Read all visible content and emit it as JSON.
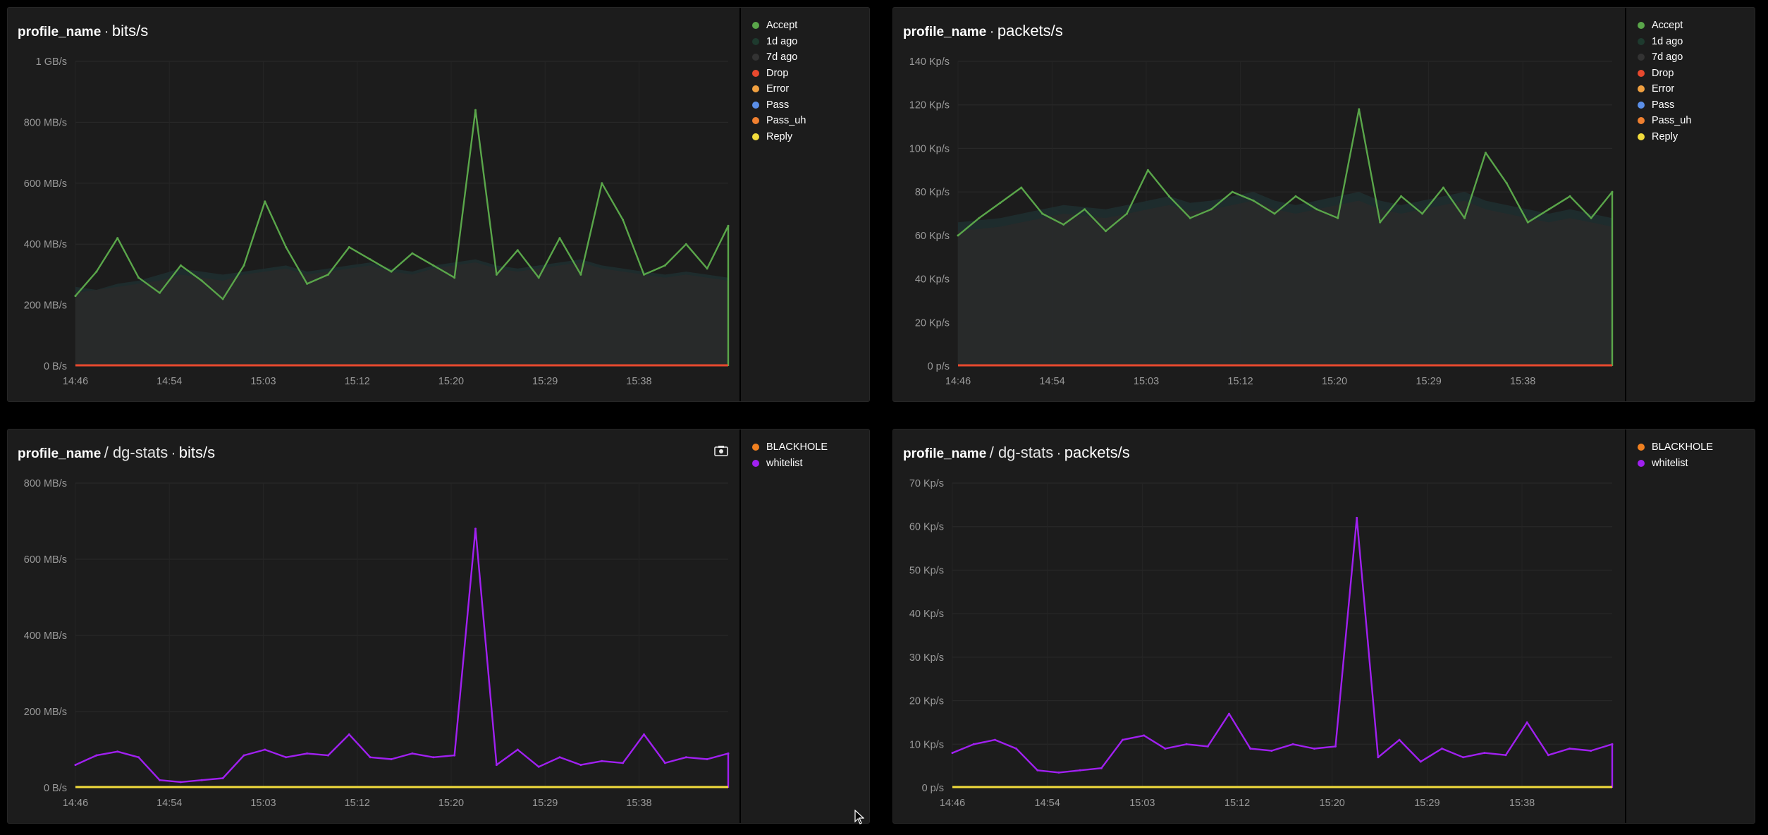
{
  "colors": {
    "accept": "#5aa64a",
    "ago1d": "#1e3a2e",
    "ago7d": "#333333",
    "drop": "#e8492e",
    "error": "#f0a040",
    "pass": "#5b8fe8",
    "pass_uh": "#f08030",
    "reply": "#f2dc3c",
    "blackhole": "#f08020",
    "whitelist": "#a020f0"
  },
  "panels": [
    {
      "title": {
        "profile": "profile_name",
        "sep": "·",
        "path": "",
        "unit": "bits/s"
      },
      "legend": [
        {
          "label": "Accept",
          "color": "#5aa64a"
        },
        {
          "label": "1d ago",
          "color": "#1e3a2e"
        },
        {
          "label": "7d ago",
          "color": "#333333"
        },
        {
          "label": "Drop",
          "color": "#e8492e"
        },
        {
          "label": "Error",
          "color": "#f0a040"
        },
        {
          "label": "Pass",
          "color": "#5b8fe8"
        },
        {
          "label": "Pass_uh",
          "color": "#f08030"
        },
        {
          "label": "Reply",
          "color": "#f2dc3c"
        }
      ]
    },
    {
      "title": {
        "profile": "profile_name",
        "sep": "·",
        "path": "",
        "unit": "packets/s"
      },
      "legend": [
        {
          "label": "Accept",
          "color": "#5aa64a"
        },
        {
          "label": "1d ago",
          "color": "#1e3a2e"
        },
        {
          "label": "7d ago",
          "color": "#333333"
        },
        {
          "label": "Drop",
          "color": "#e8492e"
        },
        {
          "label": "Error",
          "color": "#f0a040"
        },
        {
          "label": "Pass",
          "color": "#5b8fe8"
        },
        {
          "label": "Pass_uh",
          "color": "#f08030"
        },
        {
          "label": "Reply",
          "color": "#f2dc3c"
        }
      ]
    },
    {
      "title": {
        "profile": "profile_name",
        "sep": "·",
        "path": "/ dg-stats",
        "unit": "bits/s"
      },
      "legend": [
        {
          "label": "BLACKHOLE",
          "color": "#f08020"
        },
        {
          "label": "whitelist",
          "color": "#a020f0"
        }
      ]
    },
    {
      "title": {
        "profile": "profile_name",
        "sep": "·",
        "path": "/ dg-stats",
        "unit": "packets/s"
      },
      "legend": [
        {
          "label": "BLACKHOLE",
          "color": "#f08020"
        },
        {
          "label": "whitelist",
          "color": "#a020f0"
        }
      ]
    }
  ],
  "chart_data": [
    {
      "type": "line",
      "title": "profile_name · bits/s",
      "x_ticks": [
        "14:46",
        "14:54",
        "15:03",
        "15:12",
        "15:20",
        "15:29",
        "15:38"
      ],
      "y_ticks": [
        "0 B/s",
        "200 MB/s",
        "400 MB/s",
        "600 MB/s",
        "800 MB/s",
        "1 GB/s"
      ],
      "ylim": [
        0,
        1000
      ],
      "y_unit": "MB/s",
      "grid": true,
      "legend_position": "right",
      "x": [
        "14:46",
        "14:48",
        "14:50",
        "14:52",
        "14:54",
        "14:56",
        "14:58",
        "15:00",
        "15:02",
        "15:04",
        "15:06",
        "15:08",
        "15:10",
        "15:12",
        "15:14",
        "15:16",
        "15:18",
        "15:20",
        "15:22",
        "15:23",
        "15:24",
        "15:26",
        "15:28",
        "15:30",
        "15:32",
        "15:34",
        "15:36",
        "15:38",
        "15:40",
        "15:42",
        "15:44",
        "15:46"
      ],
      "series": [
        {
          "name": "Accept",
          "type": "line",
          "values": [
            230,
            310,
            420,
            290,
            240,
            330,
            280,
            220,
            330,
            540,
            390,
            270,
            300,
            390,
            350,
            310,
            370,
            330,
            290,
            840,
            300,
            380,
            290,
            420,
            300,
            600,
            480,
            300,
            330,
            400,
            320,
            460
          ]
        },
        {
          "name": "1d ago",
          "type": "area",
          "values": [
            260,
            250,
            270,
            280,
            300,
            320,
            310,
            300,
            310,
            320,
            330,
            310,
            320,
            330,
            340,
            320,
            310,
            330,
            340,
            350,
            330,
            320,
            330,
            340,
            350,
            330,
            320,
            310,
            300,
            310,
            300,
            290
          ]
        },
        {
          "name": "7d ago",
          "type": "area",
          "values": [
            240,
            250,
            260,
            270,
            280,
            300,
            290,
            280,
            300,
            310,
            320,
            300,
            310,
            320,
            330,
            310,
            300,
            320,
            330,
            340,
            320,
            310,
            320,
            330,
            340,
            320,
            310,
            300,
            290,
            300,
            290,
            280
          ]
        },
        {
          "name": "Drop",
          "type": "line",
          "values": [
            0,
            0,
            0,
            0,
            0,
            0,
            0,
            0,
            0,
            0,
            0,
            0,
            0,
            0,
            0,
            0,
            0,
            0,
            0,
            0,
            0,
            0,
            0,
            0,
            0,
            0,
            0,
            0,
            0,
            0,
            0,
            0
          ]
        }
      ]
    },
    {
      "type": "line",
      "title": "profile_name · packets/s",
      "x_ticks": [
        "14:46",
        "14:54",
        "15:03",
        "15:12",
        "15:20",
        "15:29",
        "15:38"
      ],
      "y_ticks": [
        "0 p/s",
        "20 Kp/s",
        "40 Kp/s",
        "60 Kp/s",
        "80 Kp/s",
        "100 Kp/s",
        "120 Kp/s",
        "140 Kp/s"
      ],
      "ylim": [
        0,
        140
      ],
      "y_unit": "Kp/s",
      "grid": true,
      "legend_position": "right",
      "x": [
        "14:46",
        "14:48",
        "14:50",
        "14:52",
        "14:54",
        "14:56",
        "14:58",
        "15:00",
        "15:02",
        "15:04",
        "15:06",
        "15:08",
        "15:10",
        "15:12",
        "15:14",
        "15:16",
        "15:18",
        "15:20",
        "15:22",
        "15:23",
        "15:24",
        "15:26",
        "15:28",
        "15:30",
        "15:32",
        "15:34",
        "15:36",
        "15:38",
        "15:40",
        "15:42",
        "15:44",
        "15:46"
      ],
      "series": [
        {
          "name": "Accept",
          "type": "line",
          "values": [
            60,
            68,
            75,
            82,
            70,
            65,
            72,
            62,
            70,
            90,
            78,
            68,
            72,
            80,
            76,
            70,
            78,
            72,
            68,
            118,
            66,
            78,
            70,
            82,
            68,
            98,
            84,
            66,
            72,
            78,
            68,
            80
          ]
        },
        {
          "name": "1d ago",
          "type": "area",
          "values": [
            66,
            67,
            68,
            70,
            72,
            74,
            73,
            72,
            74,
            76,
            78,
            75,
            76,
            78,
            80,
            76,
            74,
            76,
            78,
            80,
            76,
            74,
            76,
            78,
            80,
            76,
            74,
            72,
            70,
            72,
            70,
            68
          ]
        },
        {
          "name": "7d ago",
          "type": "area",
          "values": [
            62,
            63,
            64,
            66,
            68,
            70,
            69,
            68,
            70,
            72,
            74,
            71,
            72,
            74,
            76,
            72,
            70,
            72,
            74,
            76,
            72,
            70,
            72,
            74,
            76,
            72,
            70,
            68,
            66,
            68,
            66,
            64
          ]
        },
        {
          "name": "Drop",
          "type": "line",
          "values": [
            0,
            0,
            0,
            0,
            0,
            0,
            0,
            0,
            0,
            0,
            0,
            0,
            0,
            0,
            0,
            0,
            0,
            0,
            0,
            0,
            0,
            0,
            0,
            0,
            0,
            0,
            0,
            0,
            0,
            0,
            0,
            0
          ]
        }
      ]
    },
    {
      "type": "line",
      "title": "profile_name / dg-stats · bits/s",
      "x_ticks": [
        "14:46",
        "14:54",
        "15:03",
        "15:12",
        "15:20",
        "15:29",
        "15:38"
      ],
      "y_ticks": [
        "0 B/s",
        "200 MB/s",
        "400 MB/s",
        "600 MB/s",
        "800 MB/s"
      ],
      "ylim": [
        0,
        800
      ],
      "y_unit": "MB/s",
      "grid": true,
      "legend_position": "right",
      "x": [
        "14:46",
        "14:48",
        "14:50",
        "14:52",
        "14:54",
        "14:56",
        "14:58",
        "15:00",
        "15:02",
        "15:04",
        "15:06",
        "15:08",
        "15:10",
        "15:12",
        "15:14",
        "15:16",
        "15:18",
        "15:20",
        "15:22",
        "15:23",
        "15:24",
        "15:26",
        "15:28",
        "15:30",
        "15:32",
        "15:34",
        "15:36",
        "15:38",
        "15:40",
        "15:42",
        "15:44",
        "15:46"
      ],
      "series": [
        {
          "name": "whitelist",
          "type": "line",
          "values": [
            60,
            85,
            95,
            80,
            20,
            15,
            20,
            25,
            85,
            100,
            80,
            90,
            85,
            140,
            80,
            75,
            90,
            80,
            85,
            680,
            60,
            100,
            55,
            80,
            60,
            70,
            65,
            140,
            65,
            80,
            75,
            90
          ]
        },
        {
          "name": "BLACKHOLE",
          "type": "line",
          "values": [
            0,
            0,
            0,
            0,
            0,
            0,
            0,
            0,
            0,
            0,
            0,
            0,
            0,
            0,
            0,
            0,
            0,
            0,
            0,
            0,
            0,
            0,
            0,
            0,
            0,
            0,
            0,
            0,
            0,
            0,
            0,
            0
          ]
        }
      ]
    },
    {
      "type": "line",
      "title": "profile_name / dg-stats · packets/s",
      "x_ticks": [
        "14:46",
        "14:54",
        "15:03",
        "15:12",
        "15:20",
        "15:29",
        "15:38"
      ],
      "y_ticks": [
        "0 p/s",
        "10 Kp/s",
        "20 Kp/s",
        "30 Kp/s",
        "40 Kp/s",
        "50 Kp/s",
        "60 Kp/s",
        "70 Kp/s"
      ],
      "ylim": [
        0,
        70
      ],
      "y_unit": "Kp/s",
      "grid": true,
      "legend_position": "right",
      "x": [
        "14:46",
        "14:48",
        "14:50",
        "14:52",
        "14:54",
        "14:56",
        "14:58",
        "15:00",
        "15:02",
        "15:04",
        "15:06",
        "15:08",
        "15:10",
        "15:12",
        "15:14",
        "15:16",
        "15:18",
        "15:20",
        "15:22",
        "15:23",
        "15:24",
        "15:26",
        "15:28",
        "15:30",
        "15:32",
        "15:34",
        "15:36",
        "15:38",
        "15:40",
        "15:42",
        "15:44",
        "15:46"
      ],
      "series": [
        {
          "name": "whitelist",
          "type": "line",
          "values": [
            8,
            10,
            11,
            9,
            4,
            3.5,
            4,
            4.5,
            11,
            12,
            9,
            10,
            9.5,
            17,
            9,
            8.5,
            10,
            9,
            9.5,
            62,
            7,
            11,
            6,
            9,
            7,
            8,
            7.5,
            15,
            7.5,
            9,
            8.5,
            10
          ]
        },
        {
          "name": "BLACKHOLE",
          "type": "line",
          "values": [
            0,
            0,
            0,
            0,
            0,
            0,
            0,
            0,
            0,
            0,
            0,
            0,
            0,
            0,
            0,
            0,
            0,
            0,
            0,
            0,
            0,
            0,
            0,
            0,
            0,
            0,
            0,
            0,
            0,
            0,
            0,
            0
          ]
        }
      ]
    }
  ]
}
